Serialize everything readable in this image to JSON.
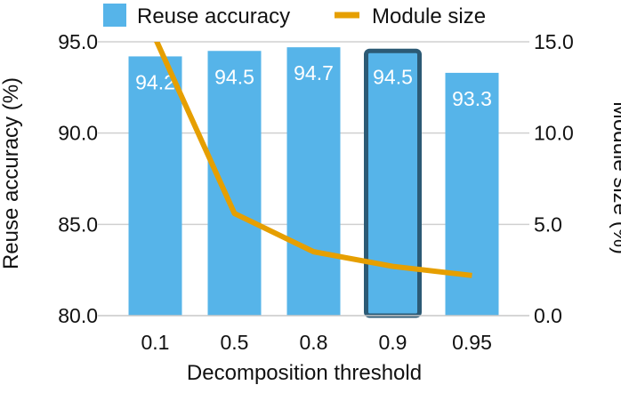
{
  "chart_data": {
    "type": "bar",
    "categories": [
      "0.1",
      "0.5",
      "0.8",
      "0.9",
      "0.95"
    ],
    "series": [
      {
        "name": "Reuse accuracy",
        "type": "bar",
        "axis": "left",
        "values": [
          94.2,
          94.5,
          94.7,
          94.5,
          93.3
        ],
        "color": "#56b4e9",
        "data_labels": [
          "94.2",
          "94.5",
          "94.7",
          "94.5",
          "93.3"
        ]
      },
      {
        "name": "Module size",
        "type": "line",
        "axis": "right",
        "values": [
          15.2,
          5.6,
          3.5,
          2.7,
          2.2
        ],
        "color": "#e69f00"
      }
    ],
    "highlight_category": "0.9",
    "highlight_color": "#2c5a75",
    "xlabel": "Decomposition threshold",
    "ylabel": "Reuse accuracy (%)",
    "y2label": "Module size (%)",
    "ylim": [
      80,
      95
    ],
    "y2lim": [
      0,
      15
    ],
    "yticks": [
      "80.0",
      "85.0",
      "90.0",
      "95.0"
    ],
    "y2ticks": [
      "0.0",
      "5.0",
      "10.0",
      "15.0"
    ],
    "grid": true,
    "legend": "top"
  }
}
